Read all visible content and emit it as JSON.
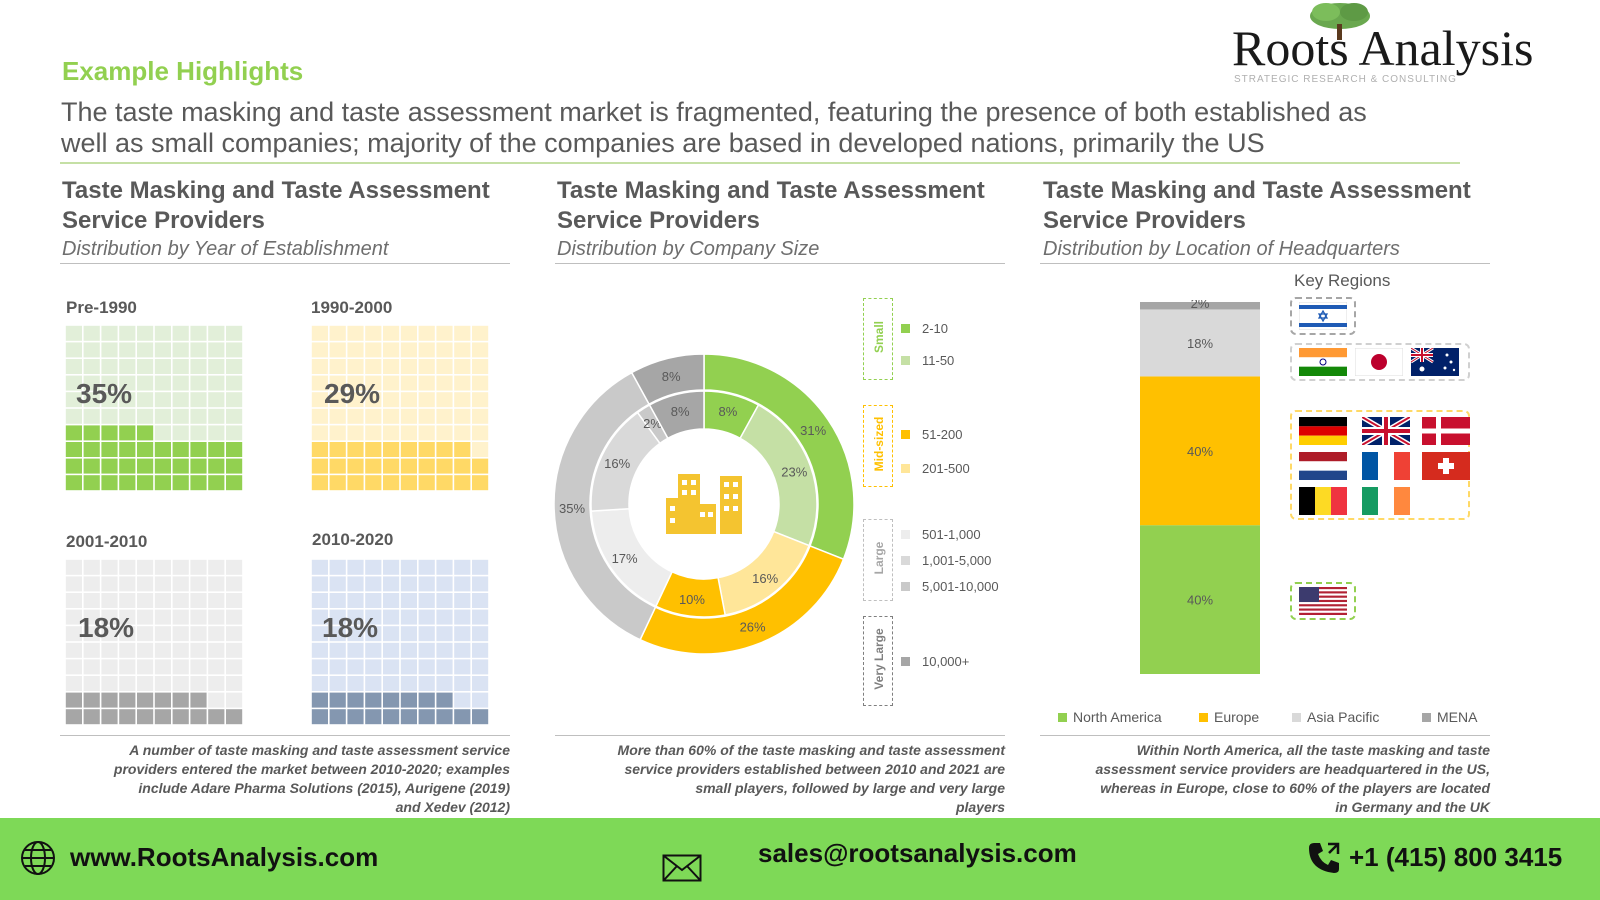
{
  "header": {
    "kicker": "Example Highlights",
    "headline_line1": "The taste masking and taste assessment market is fragmented, featuring the presence of both established as",
    "headline_line2": "well as small companies; majority of the companies are based in developed nations, primarily the US"
  },
  "logo": {
    "text": "Roots Analysis",
    "tagline": "STRATEGIC RESEARCH & CONSULTING"
  },
  "sections": [
    {
      "title_line1": "Taste Masking and Taste Assessment",
      "title_line2": "Service Providers",
      "subtitle": "Distribution by Year of Establishment"
    },
    {
      "title_line1": "Taste Masking and Taste Assessment",
      "title_line2": "Service Providers",
      "subtitle": "Distribution by Company Size"
    },
    {
      "title_line1": "Taste Masking and Taste Assessment",
      "title_line2": "Service Providers",
      "subtitle": "Distribution by Location of Headquarters"
    }
  ],
  "notes": {
    "left_lines": [
      "A number of taste masking and taste assessment service",
      "providers entered the market between 2010-2020; examples",
      "include Adare Pharma Solutions (2015), Aurigene (2019)",
      "and Xedev (2012)"
    ],
    "middle_lines": [
      "More than 60% of the taste masking and taste assessment",
      "service providers established between 2010 and 2021 are",
      "small players, followed by large and very large",
      "players"
    ],
    "right_lines": [
      "Within North America, all the taste masking and taste",
      "assessment service providers are headquartered in the US,",
      "whereas in Europe, close to 60% of the players are located",
      "in Germany and the UK"
    ]
  },
  "key_regions": {
    "label": "Key Regions",
    "flags": [
      "israel-flag",
      "india-flag",
      "japan-flag",
      "australia-flag",
      "germany-flag",
      "uk-flag",
      "denmark-flag",
      "netherlands-flag",
      "france-flag",
      "switzerland-flag",
      "belgium-flag",
      "ireland-flag",
      "us-flag"
    ]
  },
  "footer": {
    "website": "www.RootsAnalysis.com",
    "email": "sales@rootsanalysis.com",
    "phone": "+1 (415) 800 3415"
  },
  "chart_data": [
    {
      "type": "waffle",
      "categories": [
        "Pre-1990",
        "1990-2000",
        "2001-2010",
        "2010-2020"
      ],
      "values": [
        35,
        29,
        18,
        18
      ],
      "value_labels": [
        "35%",
        "29%",
        "18%",
        "18%"
      ],
      "colors": [
        "#92d050",
        "#ffd966",
        "#a6a6a6",
        "#8497b0"
      ],
      "light_colors": [
        "#e2efd9",
        "#fff2cc",
        "#ededed",
        "#dae3f3"
      ]
    },
    {
      "type": "pie",
      "outer": {
        "categories": [
          "Small",
          "Mid-sized",
          "Large",
          "Very Large"
        ],
        "values": [
          31,
          26,
          35,
          8
        ],
        "value_labels": [
          "31%",
          "26%",
          "35%",
          "8%"
        ],
        "colors": [
          "#92d050",
          "#ffc000",
          "#c9c9c9",
          "#a6a6a6"
        ]
      },
      "inner": {
        "categories": [
          "2-10",
          "11-50",
          "51-200",
          "201-500",
          "501-1,000",
          "1,001-5,000",
          "5,001-10,000",
          "10,000+"
        ],
        "values": [
          8,
          23,
          16,
          10,
          17,
          16,
          2,
          8
        ],
        "value_labels": [
          "8%",
          "23%",
          "16%",
          "10%",
          "17%",
          "16%",
          "2%",
          "8%"
        ],
        "colors": [
          "#92d050",
          "#c5e0a5",
          "#ffe699",
          "#ffc000",
          "#ededed",
          "#d9d9d9",
          "#c9c9c9",
          "#a6a6a6"
        ]
      },
      "legend_groups": [
        {
          "name": "Small",
          "color": "#92d050",
          "items": [
            {
              "label": "2-10",
              "color": "#92d050"
            },
            {
              "label": "11-50",
              "color": "#c5e0a5"
            }
          ]
        },
        {
          "name": "Mid-sized",
          "color": "#ffc000",
          "items": [
            {
              "label": "51-200",
              "color": "#ffc000"
            },
            {
              "label": "201-500",
              "color": "#ffe699"
            }
          ]
        },
        {
          "name": "Large",
          "color": "#bfbfbf",
          "items": [
            {
              "label": "501-1,000",
              "color": "#ededed"
            },
            {
              "label": "1,001-5,000",
              "color": "#d9d9d9"
            },
            {
              "label": "5,001-10,000",
              "color": "#c9c9c9"
            }
          ]
        },
        {
          "name": "Very Large",
          "color": "#7f7f7f",
          "items": [
            {
              "label": "10,000+",
              "color": "#a6a6a6"
            }
          ]
        }
      ]
    },
    {
      "type": "bar",
      "stacked": true,
      "series": [
        {
          "name": "North America",
          "values": [
            40
          ],
          "value_label": "40%",
          "color": "#92d050"
        },
        {
          "name": "Europe",
          "values": [
            40
          ],
          "value_label": "40%",
          "color": "#ffc000"
        },
        {
          "name": "Asia Pacific",
          "values": [
            18
          ],
          "value_label": "18%",
          "color": "#d9d9d9"
        },
        {
          "name": "MENA",
          "values": [
            2
          ],
          "value_label": "2%",
          "color": "#a6a6a6"
        }
      ],
      "ylim": [
        0,
        100
      ]
    }
  ]
}
